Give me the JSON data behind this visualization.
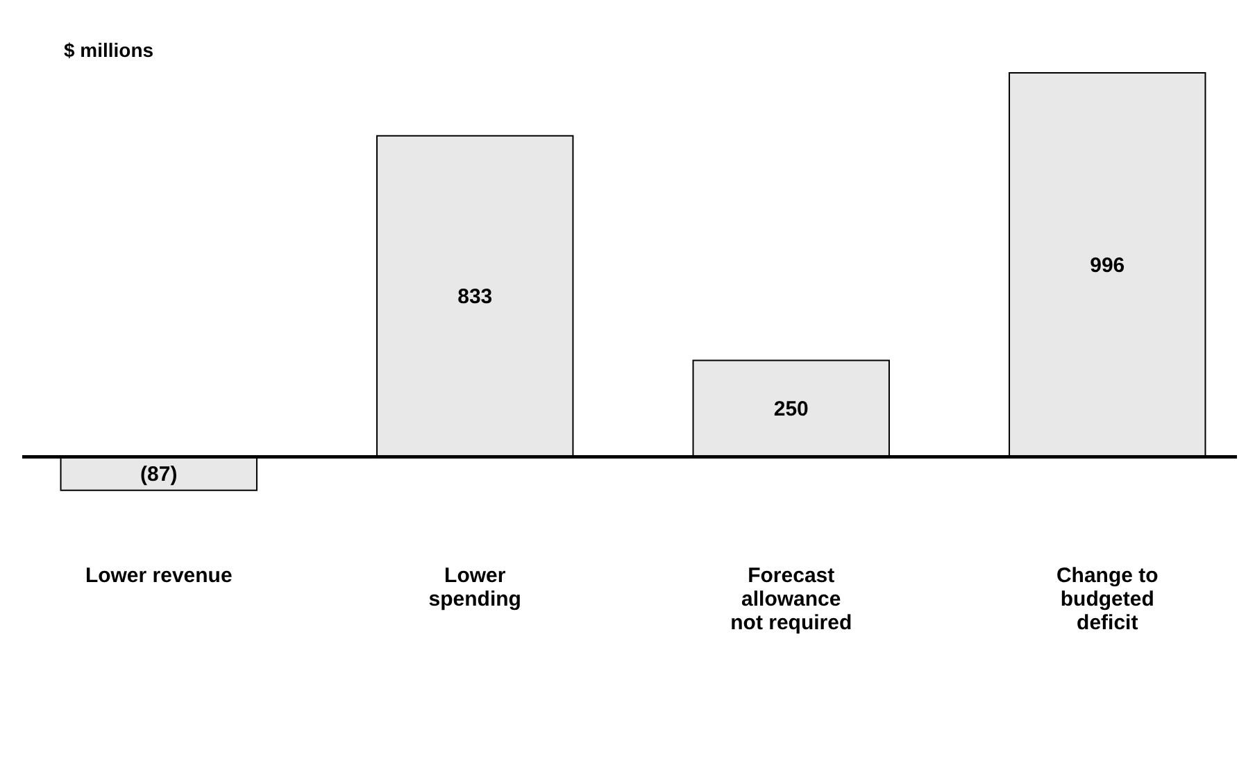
{
  "chart_data": {
    "type": "bar",
    "ylabel": "$ millions",
    "categories": [
      "Lower revenue",
      "Lower\nspending",
      "Forecast\nallowance\nnot required",
      "Change to\nbudgeted\ndeficit"
    ],
    "values": [
      -87,
      833,
      250,
      996
    ],
    "color": "#e8e8e8",
    "value_labels": [
      "(87)",
      "833",
      "250",
      "996"
    ]
  }
}
